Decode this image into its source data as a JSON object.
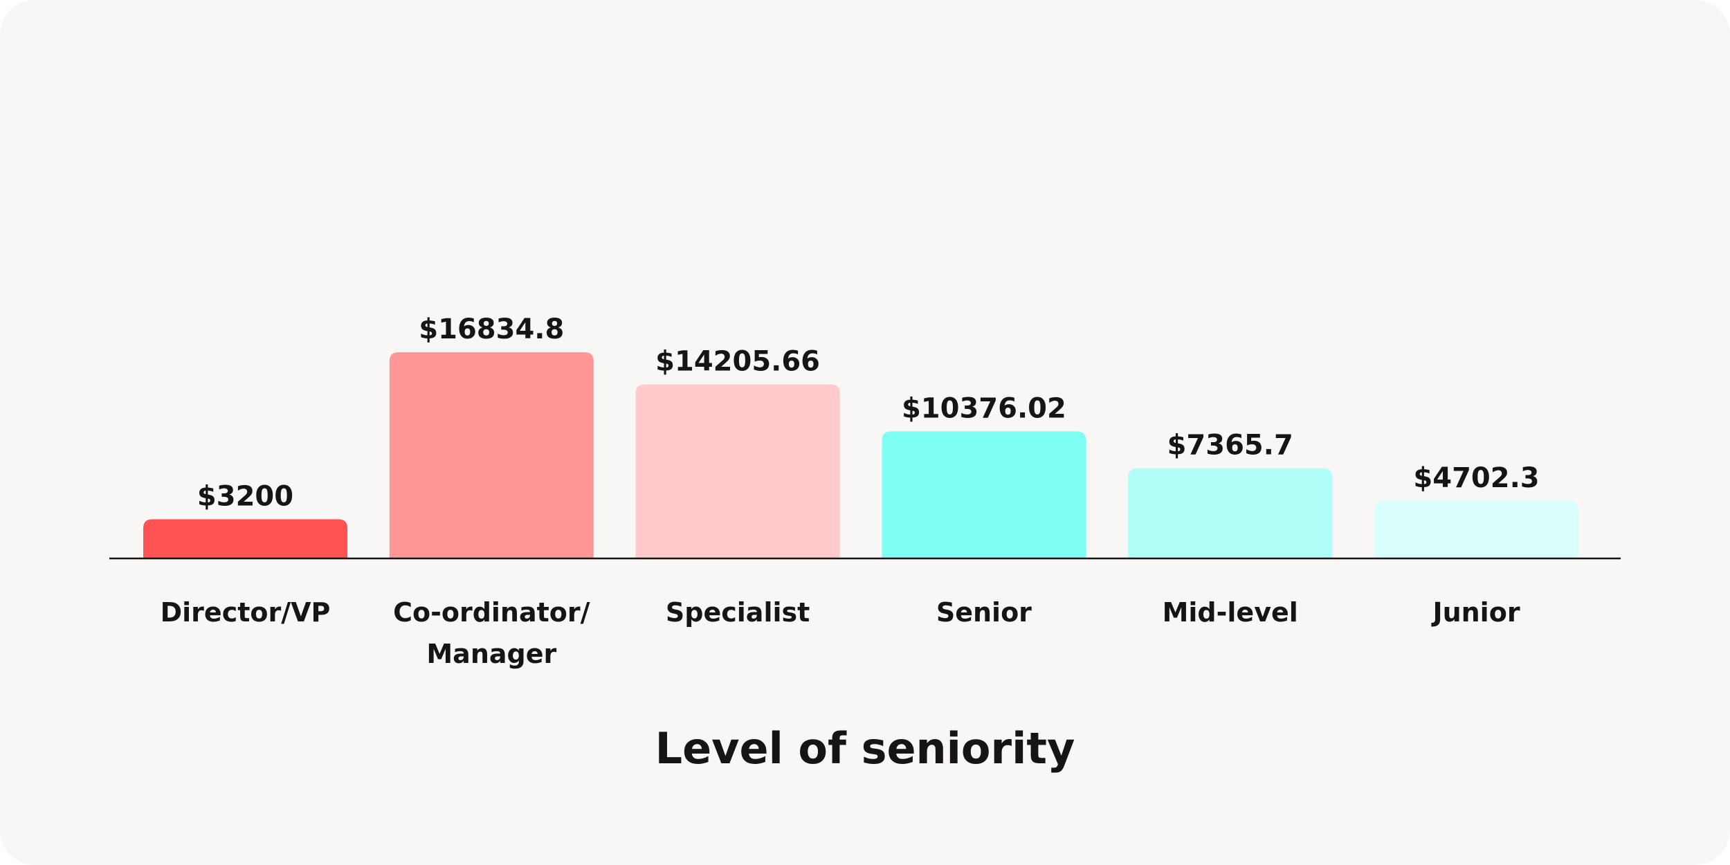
{
  "chart_data": {
    "type": "bar",
    "xlabel": "Level of seniority",
    "categories": [
      "Director/VP",
      "Co-ordinator/ Manager",
      "Specialist",
      "Senior",
      "Mid-level",
      "Junior"
    ],
    "values": [
      3200,
      16834.8,
      14205.66,
      10376.02,
      7365.7,
      4702.3
    ],
    "value_labels": [
      "$3200",
      "$16834.8",
      "$14205.66",
      "$10376.02",
      "$7365.7",
      "$4702.3"
    ],
    "colors": [
      "#ff5252",
      "#ff9797",
      "#ffcacb",
      "#7ffff3",
      "#b1fff8",
      "#d8fffb"
    ]
  }
}
